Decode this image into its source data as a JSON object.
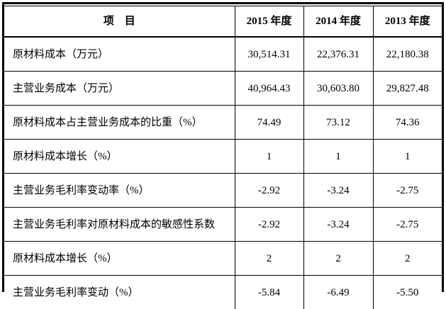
{
  "table": {
    "columns": [
      {
        "label": "项　目"
      },
      {
        "label": "2015 年度"
      },
      {
        "label": "2014 年度"
      },
      {
        "label": "2013 年度"
      }
    ],
    "rows": [
      {
        "label": "原材料成本（万元）",
        "values": [
          "30,514.31",
          "22,376.31",
          "22,180.38"
        ]
      },
      {
        "label": "主营业务成本（万元）",
        "values": [
          "40,964.43",
          "30,603.80",
          "29,827.48"
        ]
      },
      {
        "label": "原材料成本占主营业务成本的比重（%）",
        "values": [
          "74.49",
          "73.12",
          "74.36"
        ]
      },
      {
        "label": "原材料成本增长（%）",
        "values": [
          "1",
          "1",
          "1"
        ]
      },
      {
        "label": "主营业务毛利率变动率（%）",
        "values": [
          "-2.92",
          "-3.24",
          "-2.75"
        ]
      },
      {
        "label": "主营业务毛利率对原材料成本的敏感性系数",
        "values": [
          "-2.92",
          "-3.24",
          "-2.75"
        ]
      },
      {
        "label": "原材料成本增长（%）",
        "values": [
          "2",
          "2",
          "2"
        ]
      },
      {
        "label": "主营业务毛利率变动（%）",
        "values": [
          "-5.84",
          "-6.49",
          "-5.50"
        ]
      }
    ]
  }
}
